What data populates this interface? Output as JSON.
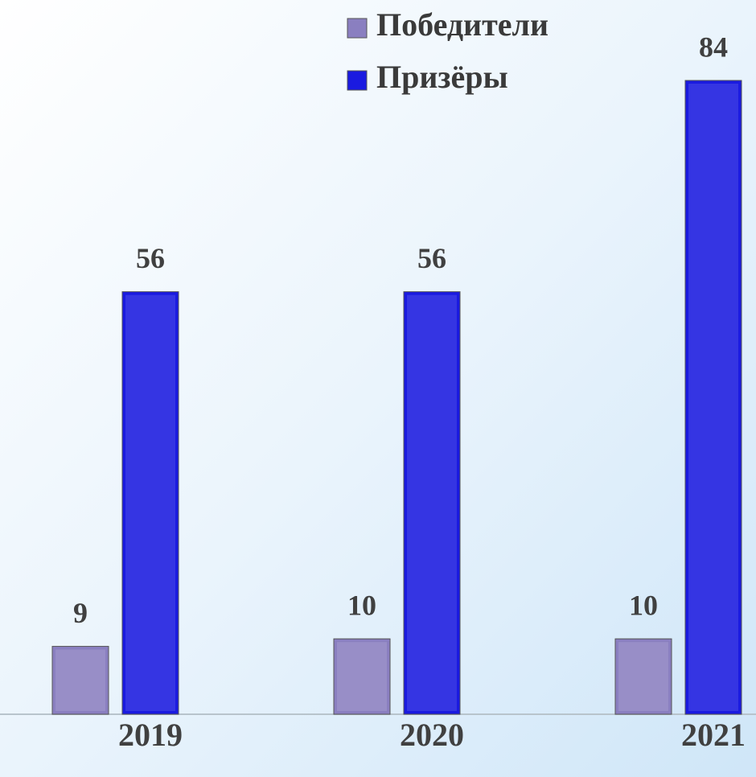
{
  "chart_data": {
    "type": "bar",
    "categories": [
      "2019",
      "2020",
      "2021"
    ],
    "series": [
      {
        "name": "Победители",
        "color": "#8a7fc0",
        "values": [
          9,
          10,
          10
        ]
      },
      {
        "name": "Призёры",
        "color": "#1a1ae0",
        "values": [
          56,
          56,
          84
        ]
      }
    ],
    "ylim": [
      0,
      84
    ],
    "legend": "top"
  }
}
